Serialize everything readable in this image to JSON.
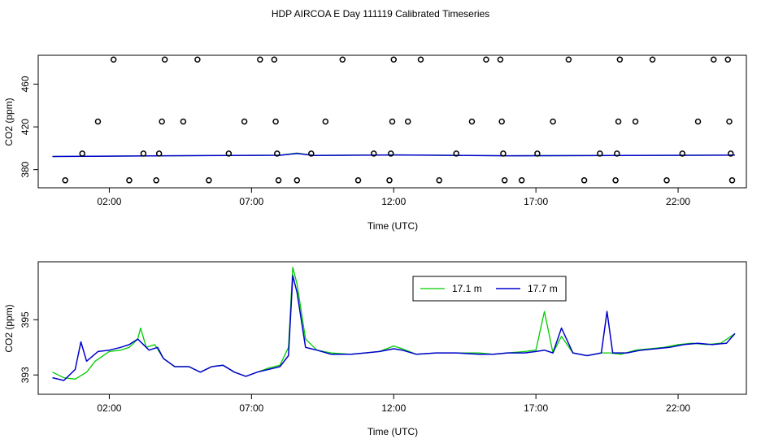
{
  "title": "HDP AIRCOA E  Day 111119  Calibrated Timeseries",
  "colors": {
    "green": "#00cc00",
    "blue": "#0000cc",
    "axis": "#000000"
  },
  "chart_data": [
    {
      "type": "scatter",
      "xlabel": "Time (UTC)",
      "ylabel": "CO2 (ppm)",
      "xlim": [
        -0.5,
        24.4
      ],
      "ylim": [
        363,
        487
      ],
      "xticks": [
        2,
        7,
        12,
        17,
        22
      ],
      "xtick_labels": [
        "02:00",
        "07:00",
        "12:00",
        "17:00",
        "22:00"
      ],
      "yticks": [
        380,
        420,
        460
      ],
      "ytick_labels": [
        "380",
        "420",
        "460"
      ],
      "scatter_points": [
        [
          0.45,
          370
        ],
        [
          1.05,
          395
        ],
        [
          1.6,
          425
        ],
        [
          2.15,
          483
        ],
        [
          2.7,
          370
        ],
        [
          3.2,
          395
        ],
        [
          3.65,
          370
        ],
        [
          3.75,
          395
        ],
        [
          3.85,
          425
        ],
        [
          3.95,
          483
        ],
        [
          4.6,
          425
        ],
        [
          5.1,
          483
        ],
        [
          5.5,
          370
        ],
        [
          6.2,
          395
        ],
        [
          6.75,
          425
        ],
        [
          7.3,
          483
        ],
        [
          7.8,
          483
        ],
        [
          7.85,
          425
        ],
        [
          7.9,
          395
        ],
        [
          7.95,
          370
        ],
        [
          8.6,
          370
        ],
        [
          9.1,
          395
        ],
        [
          9.6,
          425
        ],
        [
          10.2,
          483
        ],
        [
          10.75,
          370
        ],
        [
          11.3,
          395
        ],
        [
          11.85,
          370
        ],
        [
          11.9,
          395
        ],
        [
          11.95,
          425
        ],
        [
          12.0,
          483
        ],
        [
          12.5,
          425
        ],
        [
          12.95,
          483
        ],
        [
          13.6,
          370
        ],
        [
          14.2,
          395
        ],
        [
          14.75,
          425
        ],
        [
          15.25,
          483
        ],
        [
          15.75,
          483
        ],
        [
          15.8,
          425
        ],
        [
          15.85,
          395
        ],
        [
          15.9,
          370
        ],
        [
          16.5,
          370
        ],
        [
          17.05,
          395
        ],
        [
          17.6,
          425
        ],
        [
          18.15,
          483
        ],
        [
          18.7,
          370
        ],
        [
          19.25,
          395
        ],
        [
          19.8,
          370
        ],
        [
          19.85,
          395
        ],
        [
          19.9,
          425
        ],
        [
          19.95,
          483
        ],
        [
          20.5,
          425
        ],
        [
          21.1,
          483
        ],
        [
          21.6,
          370
        ],
        [
          22.15,
          395
        ],
        [
          22.7,
          425
        ],
        [
          23.25,
          483
        ],
        [
          23.75,
          483
        ],
        [
          23.8,
          425
        ],
        [
          23.85,
          395
        ],
        [
          23.9,
          370
        ]
      ],
      "series": [
        {
          "points": [
            [
              0,
              392.3
            ],
            [
              4,
              393.0
            ],
            [
              8,
              393.5
            ],
            [
              8.6,
              395.5
            ],
            [
              9.2,
              393.3
            ],
            [
              12,
              393.8
            ],
            [
              16,
              393.0
            ],
            [
              20,
              393.2
            ],
            [
              24,
              393.6
            ]
          ]
        },
        {
          "points": [
            [
              0,
              392.3
            ],
            [
              4,
              393.0
            ],
            [
              8,
              393.4
            ],
            [
              8.6,
              395.2
            ],
            [
              9.2,
              393.2
            ],
            [
              12,
              393.7
            ],
            [
              16,
              393.0
            ],
            [
              20,
              393.3
            ],
            [
              24,
              393.6
            ]
          ]
        }
      ]
    },
    {
      "type": "line",
      "xlabel": "Time (UTC)",
      "ylabel": "CO2 (ppm)",
      "xlim": [
        -0.5,
        24.4
      ],
      "ylim": [
        392.3,
        397.1
      ],
      "xticks": [
        2,
        7,
        12,
        17,
        22
      ],
      "xtick_labels": [
        "02:00",
        "07:00",
        "12:00",
        "17:00",
        "22:00"
      ],
      "yticks": [
        393,
        395
      ],
      "ytick_labels": [
        "393",
        "395"
      ],
      "legend": {
        "position": "top-right"
      },
      "series": [
        {
          "name": "17.1 m",
          "points": [
            [
              0,
              393.1
            ],
            [
              0.4,
              392.9
            ],
            [
              0.8,
              392.85
            ],
            [
              1.2,
              393.1
            ],
            [
              1.5,
              393.5
            ],
            [
              2,
              393.85
            ],
            [
              2.4,
              393.9
            ],
            [
              2.7,
              394.0
            ],
            [
              3.0,
              394.3
            ],
            [
              3.1,
              394.7
            ],
            [
              3.3,
              394.0
            ],
            [
              3.6,
              394.1
            ],
            [
              3.9,
              393.6
            ],
            [
              4.3,
              393.3
            ],
            [
              4.8,
              393.3
            ],
            [
              5.2,
              393.1
            ],
            [
              5.6,
              393.3
            ],
            [
              6.0,
              393.35
            ],
            [
              6.4,
              393.1
            ],
            [
              6.8,
              392.95
            ],
            [
              7.2,
              393.1
            ],
            [
              7.6,
              393.25
            ],
            [
              8.0,
              393.35
            ],
            [
              8.3,
              394.0
            ],
            [
              8.45,
              396.9
            ],
            [
              8.6,
              396.3
            ],
            [
              8.9,
              394.3
            ],
            [
              9.3,
              393.9
            ],
            [
              9.8,
              393.8
            ],
            [
              10.5,
              393.75
            ],
            [
              11.0,
              393.8
            ],
            [
              11.5,
              393.85
            ],
            [
              12.0,
              394.05
            ],
            [
              12.3,
              393.95
            ],
            [
              12.8,
              393.75
            ],
            [
              13.5,
              393.8
            ],
            [
              14.2,
              393.8
            ],
            [
              15.0,
              393.8
            ],
            [
              15.5,
              393.75
            ],
            [
              16.0,
              393.8
            ],
            [
              16.6,
              393.85
            ],
            [
              17.0,
              393.9
            ],
            [
              17.3,
              395.3
            ],
            [
              17.6,
              393.8
            ],
            [
              17.9,
              394.4
            ],
            [
              18.3,
              393.8
            ],
            [
              18.8,
              393.7
            ],
            [
              19.3,
              393.8
            ],
            [
              19.6,
              393.8
            ],
            [
              20.0,
              393.75
            ],
            [
              20.5,
              393.9
            ],
            [
              21.0,
              393.95
            ],
            [
              21.5,
              394.0
            ],
            [
              22.0,
              394.1
            ],
            [
              22.5,
              394.15
            ],
            [
              23.0,
              394.1
            ],
            [
              23.5,
              394.15
            ],
            [
              24.0,
              394.5
            ]
          ]
        },
        {
          "name": "17.7 m",
          "points": [
            [
              0,
              392.9
            ],
            [
              0.4,
              392.8
            ],
            [
              0.8,
              393.2
            ],
            [
              1.0,
              394.2
            ],
            [
              1.2,
              393.5
            ],
            [
              1.6,
              393.85
            ],
            [
              2,
              393.9
            ],
            [
              2.4,
              394.0
            ],
            [
              2.7,
              394.1
            ],
            [
              3.0,
              394.3
            ],
            [
              3.4,
              393.9
            ],
            [
              3.7,
              394.0
            ],
            [
              3.9,
              393.6
            ],
            [
              4.3,
              393.3
            ],
            [
              4.8,
              393.3
            ],
            [
              5.2,
              393.1
            ],
            [
              5.6,
              393.3
            ],
            [
              6.0,
              393.35
            ],
            [
              6.4,
              393.1
            ],
            [
              6.8,
              392.95
            ],
            [
              7.2,
              393.1
            ],
            [
              7.6,
              393.2
            ],
            [
              8.0,
              393.3
            ],
            [
              8.3,
              393.7
            ],
            [
              8.45,
              396.6
            ],
            [
              8.6,
              396.0
            ],
            [
              8.9,
              394.0
            ],
            [
              9.3,
              393.9
            ],
            [
              9.8,
              393.75
            ],
            [
              10.5,
              393.75
            ],
            [
              11.0,
              393.8
            ],
            [
              11.5,
              393.85
            ],
            [
              12.0,
              393.95
            ],
            [
              12.3,
              393.9
            ],
            [
              12.8,
              393.75
            ],
            [
              13.5,
              393.8
            ],
            [
              14.2,
              393.8
            ],
            [
              15.0,
              393.75
            ],
            [
              15.5,
              393.75
            ],
            [
              16.0,
              393.8
            ],
            [
              16.6,
              393.8
            ],
            [
              17.0,
              393.85
            ],
            [
              17.3,
              393.9
            ],
            [
              17.6,
              393.8
            ],
            [
              17.9,
              394.7
            ],
            [
              18.3,
              393.8
            ],
            [
              18.8,
              393.7
            ],
            [
              19.3,
              393.8
            ],
            [
              19.5,
              395.3
            ],
            [
              19.7,
              393.8
            ],
            [
              20.2,
              393.8
            ],
            [
              20.7,
              393.9
            ],
            [
              21.2,
              393.95
            ],
            [
              21.7,
              394.0
            ],
            [
              22.2,
              394.1
            ],
            [
              22.7,
              394.15
            ],
            [
              23.2,
              394.1
            ],
            [
              23.7,
              394.15
            ],
            [
              24.0,
              394.5
            ]
          ]
        }
      ]
    }
  ]
}
